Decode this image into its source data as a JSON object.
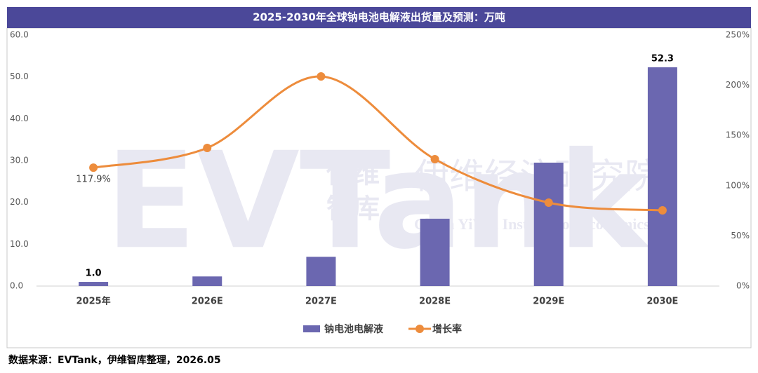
{
  "chart_data": {
    "type": "bar-line",
    "title": "2025-2030年全球钠电池电解液出货量及预测：万吨",
    "categories": [
      "2025年",
      "2026E",
      "2027E",
      "2028E",
      "2029E",
      "2030E"
    ],
    "series": [
      {
        "name": "钠电池电解液",
        "type": "bar",
        "color": "#6b67b0",
        "values": [
          1.0,
          2.3,
          7.0,
          16.1,
          29.5,
          52.3
        ],
        "value_labels": [
          "1.0",
          null,
          null,
          null,
          null,
          "52.3"
        ]
      },
      {
        "name": "增长率",
        "type": "line",
        "axis": "y2",
        "color": "#ed8c3c",
        "values": [
          117.9,
          137.6,
          208.8,
          126.4,
          83.1,
          75.4
        ],
        "value_labels": [
          "117.9%",
          null,
          null,
          null,
          null,
          null
        ]
      }
    ],
    "ylim": [
      0,
      60
    ],
    "yticks": [
      {
        "value": 0,
        "label": "0.0"
      },
      {
        "value": 10,
        "label": "10.0"
      },
      {
        "value": 20,
        "label": "20.0"
      },
      {
        "value": 30,
        "label": "30.0"
      },
      {
        "value": 40,
        "label": "40.0"
      },
      {
        "value": 50,
        "label": "50.0"
      },
      {
        "value": 60,
        "label": "60.0"
      }
    ],
    "y2lim": [
      0,
      250
    ],
    "y2ticks": [
      {
        "value": 0,
        "label": "0%"
      },
      {
        "value": 50,
        "label": "50%"
      },
      {
        "value": 100,
        "label": "100%"
      },
      {
        "value": 150,
        "label": "150%"
      },
      {
        "value": 200,
        "label": "200%"
      },
      {
        "value": 250,
        "label": "250%"
      }
    ],
    "legend": "bottom",
    "source": "数据来源：EVTank，伊维智库整理，2026.05",
    "watermark": {
      "brand": "伊维经济研究院",
      "english": "China YiWei Institute of Economics",
      "short_top": "伊维",
      "short_bottom": "智库",
      "logo": "EVTank"
    }
  }
}
